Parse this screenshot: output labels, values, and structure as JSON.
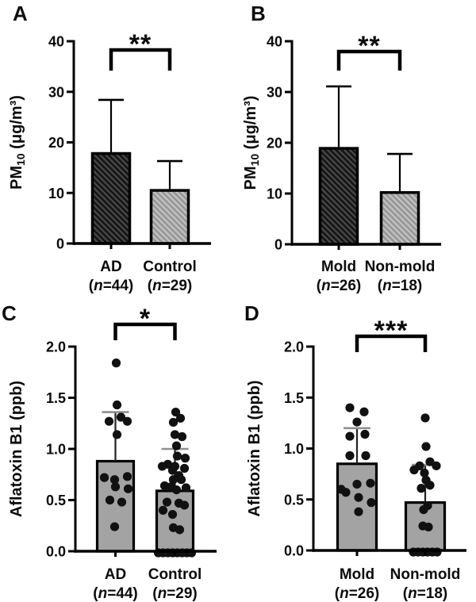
{
  "figure": {
    "background": "#ffffff",
    "description": "Four-panel bar chart figure comparing PM10 and Aflatoxin B1 levels"
  },
  "colors": {
    "ink": "#000000",
    "bar_dark": "#151515",
    "bar_dark_stripe": "#4a4a4a",
    "bar_light": "#979797",
    "bar_light_stripe": "#c4c4c4",
    "bar_solid": "#a3a3a3",
    "dot": "#111111",
    "error_line_dark": "#000000",
    "error_line_gray": "#222222",
    "error_cap_gray": "#8f8f8f"
  },
  "chart_data": [
    {
      "panel_label": "A",
      "type": "bar",
      "title": "",
      "xlabel": "",
      "ylabel": "PM10 (μg/m³)",
      "ylabel_parts": [
        {
          "text": "PM"
        },
        {
          "text": "10",
          "sub": true
        },
        {
          "text": " (μg/m³)"
        }
      ],
      "ylim": [
        0,
        40
      ],
      "yticks": [
        0,
        10,
        20,
        30,
        40
      ],
      "ytick_labels": [
        "0",
        "10",
        "20",
        "30",
        "40"
      ],
      "categories": [
        "AD",
        "Control"
      ],
      "n_labels": [
        "(n=44)",
        "(n=29)"
      ],
      "values": [
        17.8,
        10.5
      ],
      "error_top": [
        28.4,
        16.3
      ],
      "significance": "**",
      "bar_styles": [
        "dark-hatch",
        "light-hatch"
      ]
    },
    {
      "panel_label": "B",
      "type": "bar",
      "title": "",
      "xlabel": "",
      "ylabel": "PM10 (μg/m³)",
      "ylabel_parts": [
        {
          "text": "PM"
        },
        {
          "text": "10",
          "sub": true
        },
        {
          "text": " (μg/m³)"
        }
      ],
      "ylim": [
        0,
        40
      ],
      "yticks": [
        0,
        10,
        20,
        30,
        40
      ],
      "ytick_labels": [
        "0",
        "10",
        "20",
        "30",
        "40"
      ],
      "categories": [
        "Mold",
        "Non-mold"
      ],
      "n_labels": [
        "(n=26)",
        "(n=18)"
      ],
      "values": [
        18.9,
        10.2
      ],
      "error_top": [
        31.1,
        17.8
      ],
      "significance": "**",
      "bar_styles": [
        "dark-hatch",
        "light-hatch"
      ]
    },
    {
      "panel_label": "C",
      "type": "bar-scatter",
      "title": "",
      "xlabel": "",
      "ylabel": "Aflatoxin B1 (ppb)",
      "ylabel_parts": [
        {
          "text": "Aflatoxin B1 (ppb)"
        }
      ],
      "ylim": [
        0,
        2.0
      ],
      "yticks": [
        0,
        0.5,
        1.0,
        1.5,
        2.0
      ],
      "ytick_labels": [
        "0.0",
        "0.5",
        "1.0",
        "1.5",
        "2.0"
      ],
      "categories": [
        "AD",
        "Control"
      ],
      "n_labels": [
        "(n=44)",
        "(n=29)"
      ],
      "values": [
        0.88,
        0.59
      ],
      "error_top": [
        1.36,
        1.0
      ],
      "significance": "*",
      "bar_styles": [
        "solid-gray",
        "solid-gray"
      ],
      "points": [
        [
          {
            "dx": 1,
            "v": 1.84
          },
          {
            "dx": 2,
            "v": 1.43
          },
          {
            "dx": -8,
            "v": 1.27
          },
          {
            "dx": 7,
            "v": 1.31
          },
          {
            "dx": 15,
            "v": 1.27
          },
          {
            "dx": 2,
            "v": 1.14
          },
          {
            "dx": -14,
            "v": 0.72
          },
          {
            "dx": -1,
            "v": 0.7
          },
          {
            "dx": 15,
            "v": 0.73
          },
          {
            "dx": 0,
            "v": 0.63
          },
          {
            "dx": 16,
            "v": 0.61
          },
          {
            "dx": -7,
            "v": 0.5
          },
          {
            "dx": 8,
            "v": 0.48
          },
          {
            "dx": -1,
            "v": 0.24
          }
        ],
        [
          {
            "dx": 1,
            "v": 1.36
          },
          {
            "dx": 7,
            "v": 1.3
          },
          {
            "dx": -2,
            "v": 1.26
          },
          {
            "dx": 0,
            "v": 1.14
          },
          {
            "dx": 9,
            "v": 1.12
          },
          {
            "dx": 2,
            "v": 1.03
          },
          {
            "dx": 3,
            "v": 0.93
          },
          {
            "dx": 13,
            "v": 0.91
          },
          {
            "dx": -9,
            "v": 0.85
          },
          {
            "dx": -16,
            "v": 0.83
          },
          {
            "dx": 0,
            "v": 0.83
          },
          {
            "dx": 12,
            "v": 0.81
          },
          {
            "dx": -3,
            "v": 0.79
          },
          {
            "dx": 5,
            "v": 0.74
          },
          {
            "dx": -2,
            "v": 0.7
          },
          {
            "dx": 8,
            "v": 0.7
          },
          {
            "dx": -13,
            "v": 0.64
          },
          {
            "dx": -5,
            "v": 0.63
          },
          {
            "dx": 14,
            "v": 0.62
          },
          {
            "dx": 2,
            "v": 0.6
          },
          {
            "dx": -10,
            "v": 0.48
          },
          {
            "dx": 5,
            "v": 0.47
          },
          {
            "dx": 12,
            "v": 0.45
          },
          {
            "dx": -15,
            "v": 0.4
          },
          {
            "dx": -3,
            "v": 0.36
          },
          {
            "dx": -2,
            "v": 0.23
          },
          {
            "dx": 6,
            "v": 0.21
          },
          {
            "dx": -21,
            "v": 0
          },
          {
            "dx": -15,
            "v": 0
          },
          {
            "dx": -9,
            "v": 0
          },
          {
            "dx": -3,
            "v": 0
          },
          {
            "dx": 3,
            "v": 0
          },
          {
            "dx": 9,
            "v": 0
          },
          {
            "dx": 15,
            "v": 0
          },
          {
            "dx": 21,
            "v": 0
          }
        ]
      ]
    },
    {
      "panel_label": "D",
      "type": "bar-scatter",
      "title": "",
      "xlabel": "",
      "ylabel": "Aflatoxin B1 (ppb)",
      "ylabel_parts": [
        {
          "text": "Aflatoxin B1 (ppb)"
        }
      ],
      "ylim": [
        0,
        2.0
      ],
      "yticks": [
        0,
        0.5,
        1.0,
        1.5,
        2.0
      ],
      "ytick_labels": [
        "0.0",
        "0.5",
        "1.0",
        "1.5",
        "2.0"
      ],
      "categories": [
        "Mold",
        "Non-mold"
      ],
      "n_labels": [
        "(n=26)",
        "(n=18)"
      ],
      "values": [
        0.85,
        0.47
      ],
      "error_top": [
        1.2,
        0.84
      ],
      "significance": "***",
      "bar_styles": [
        "solid-gray",
        "solid-gray"
      ],
      "points": [
        [
          {
            "dx": -9,
            "v": 1.4
          },
          {
            "dx": 9,
            "v": 1.36
          },
          {
            "dx": 0,
            "v": 1.26
          },
          {
            "dx": -9,
            "v": 1.12
          },
          {
            "dx": 10,
            "v": 1.14
          },
          {
            "dx": -9,
            "v": 0.93
          },
          {
            "dx": 11,
            "v": 0.93
          },
          {
            "dx": 0,
            "v": 0.65
          },
          {
            "dx": 17,
            "v": 0.66
          },
          {
            "dx": -20,
            "v": 0.6
          },
          {
            "dx": -14,
            "v": 0.57
          },
          {
            "dx": 2,
            "v": 0.52
          },
          {
            "dx": 18,
            "v": 0.47
          },
          {
            "dx": 2,
            "v": 0.38
          }
        ],
        [
          {
            "dx": 0,
            "v": 1.3
          },
          {
            "dx": 1,
            "v": 1.02
          },
          {
            "dx": 6,
            "v": 0.87
          },
          {
            "dx": 14,
            "v": 0.83
          },
          {
            "dx": -7,
            "v": 0.83
          },
          {
            "dx": -14,
            "v": 0.79
          },
          {
            "dx": -1,
            "v": 0.76
          },
          {
            "dx": 1,
            "v": 0.69
          },
          {
            "dx": 6,
            "v": 0.64
          },
          {
            "dx": -5,
            "v": 0.61
          },
          {
            "dx": 3,
            "v": 0.44
          },
          {
            "dx": -2,
            "v": 0.4
          },
          {
            "dx": -3,
            "v": 0.24
          },
          {
            "dx": 4,
            "v": 0.23
          },
          {
            "dx": -15,
            "v": 0
          },
          {
            "dx": -9,
            "v": 0
          },
          {
            "dx": -3,
            "v": 0
          },
          {
            "dx": 3,
            "v": 0
          },
          {
            "dx": 9,
            "v": 0
          },
          {
            "dx": 15,
            "v": 0
          }
        ]
      ]
    }
  ]
}
